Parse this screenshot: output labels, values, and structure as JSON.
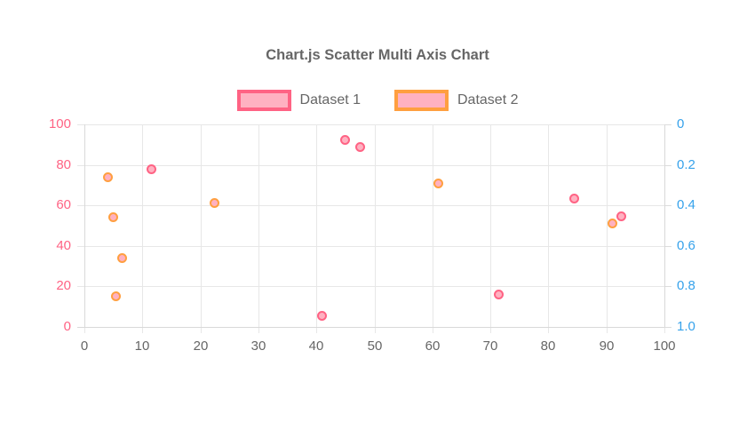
{
  "title": "Chart.js Scatter Multi Axis Chart",
  "legend": {
    "items": [
      {
        "label": "Dataset 1",
        "fill": "#ffb1c1",
        "border": "#ff6384"
      },
      {
        "label": "Dataset 2",
        "fill": "#ffb1c1",
        "border": "#ff9f40"
      }
    ]
  },
  "chart_data": {
    "type": "scatter",
    "title": "Chart.js Scatter Multi Axis Chart",
    "legend_position": "top",
    "grid": true,
    "x_axis": {
      "min": 0,
      "max": 100,
      "tick_values": [
        0,
        10,
        20,
        30,
        40,
        50,
        60,
        70,
        80,
        90,
        100
      ],
      "tick_labels": [
        "0",
        "10",
        "20",
        "30",
        "40",
        "50",
        "60",
        "70",
        "80",
        "90",
        "100"
      ],
      "color": "#666666",
      "position": "bottom"
    },
    "y_axis_left": {
      "min": 0,
      "max": 100,
      "tick_values": [
        0,
        20,
        40,
        60,
        80,
        100
      ],
      "tick_labels": [
        "0",
        "20",
        "40",
        "60",
        "80",
        "100"
      ],
      "color": "#ff6384",
      "position": "left"
    },
    "y_axis_right": {
      "min": 0,
      "max": 1,
      "reversed": true,
      "tick_values": [
        0,
        0.2,
        0.4,
        0.6,
        0.8,
        1.0
      ],
      "tick_labels": [
        "0",
        "0.2",
        "0.4",
        "0.6",
        "0.8",
        "1.0"
      ],
      "color": "#36a2eb",
      "position": "right",
      "grid_on_chart_area": false
    },
    "series": [
      {
        "name": "Dataset 1",
        "axis": "left",
        "point_fill": "#ffb1c1",
        "point_border": "#ff6384",
        "points": [
          {
            "x": 11.5,
            "y": 78
          },
          {
            "x": 41,
            "y": 5.5
          },
          {
            "x": 45,
            "y": 92.5
          },
          {
            "x": 47.5,
            "y": 89
          },
          {
            "x": 71.5,
            "y": 16
          },
          {
            "x": 84.5,
            "y": 63.5
          },
          {
            "x": 92.5,
            "y": 54.5
          }
        ]
      },
      {
        "name": "Dataset 2",
        "axis": "right",
        "point_fill": "#ffb1c1",
        "point_border": "#ff9f40",
        "points": [
          {
            "x": 4,
            "y": 0.26
          },
          {
            "x": 5,
            "y": 0.46
          },
          {
            "x": 5.5,
            "y": 0.85
          },
          {
            "x": 6.5,
            "y": 0.66
          },
          {
            "x": 22.5,
            "y": 0.39
          },
          {
            "x": 61,
            "y": 0.29
          },
          {
            "x": 91,
            "y": 0.49
          }
        ]
      }
    ]
  },
  "colors": {
    "background": "#ffffff",
    "grid": "#e7e7e7",
    "axis_border": "#d9d9d9",
    "tick_text": "#666666"
  }
}
